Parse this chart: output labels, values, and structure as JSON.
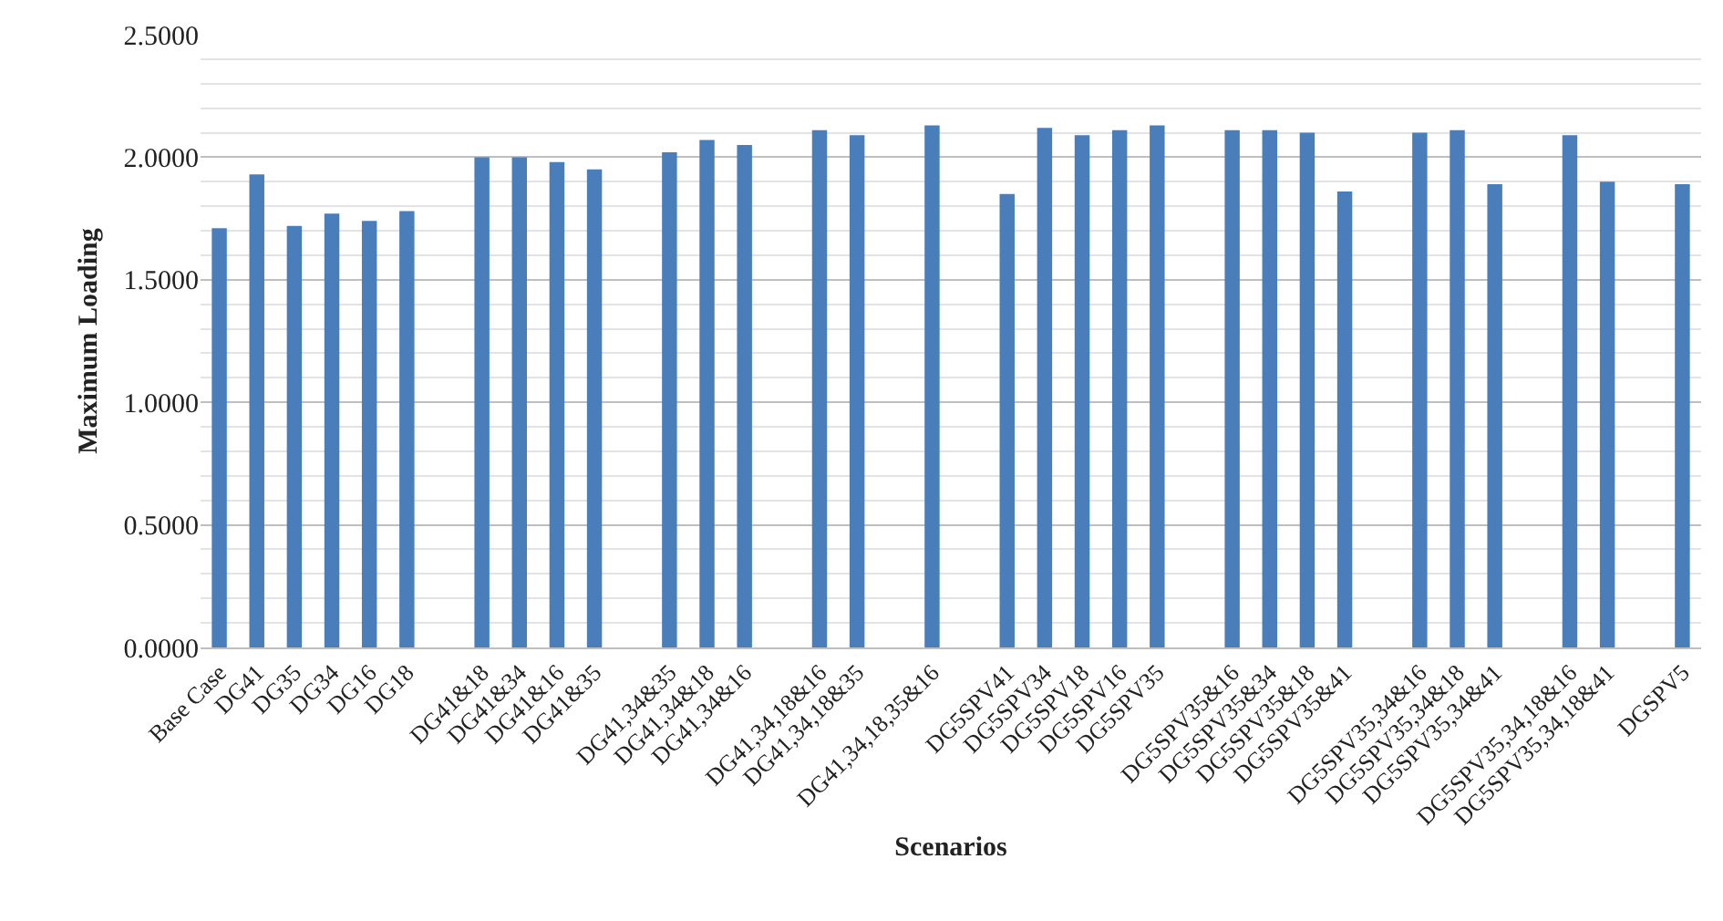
{
  "chart_data": {
    "type": "bar",
    "xlabel": "Scenarios",
    "ylabel": "Maximum Loading",
    "color": "#4a7ebb",
    "categories": [
      "Base Case",
      "DG41",
      "DG35",
      "DG34",
      "DG16",
      "DG18",
      null,
      "DG41&18",
      "DG41&34",
      "DG41&16",
      "DG41&35",
      null,
      "DG41,34&35",
      "DG41,34&18",
      "DG41,34&16",
      null,
      "DG41,34,18&16",
      "DG41,34,18&35",
      null,
      "DG41,34,18,35&16",
      null,
      "DG5SPV41",
      "DG5SPV34",
      "DG5SPV18",
      "DG5SPV16",
      "DG5SPV35",
      null,
      "DG5SPV35&16",
      "DG5SPV35&34",
      "DG5SPV35&18",
      "DG5SPV35&41",
      null,
      "DG5SPV35,34&16",
      "DG5SPV35,34&18",
      "DG5SPV35,34&41",
      null,
      "DG5SPV35,34,18&16",
      "DG5SPV35,34,18&41",
      null,
      "DGSPV5"
    ],
    "values": [
      1.71,
      1.93,
      1.72,
      1.77,
      1.74,
      1.78,
      null,
      2.0,
      2.0,
      1.98,
      1.95,
      null,
      2.02,
      2.07,
      2.05,
      null,
      2.11,
      2.09,
      null,
      2.13,
      null,
      1.85,
      2.12,
      2.09,
      2.11,
      2.13,
      null,
      2.11,
      2.11,
      2.1,
      1.86,
      null,
      2.1,
      2.11,
      1.89,
      null,
      2.09,
      1.9,
      null,
      1.89
    ],
    "ylim": [
      0,
      2.5
    ],
    "yticks": [
      {
        "value": 0,
        "label": "0.0000"
      },
      {
        "value": 0.5,
        "label": "0.5000"
      },
      {
        "value": 1,
        "label": "1.0000"
      },
      {
        "value": 1.5,
        "label": "1.5000"
      },
      {
        "value": 2,
        "label": "2.0000"
      },
      {
        "value": 2.5,
        "label": "2.5000"
      }
    ],
    "grid": "y"
  }
}
